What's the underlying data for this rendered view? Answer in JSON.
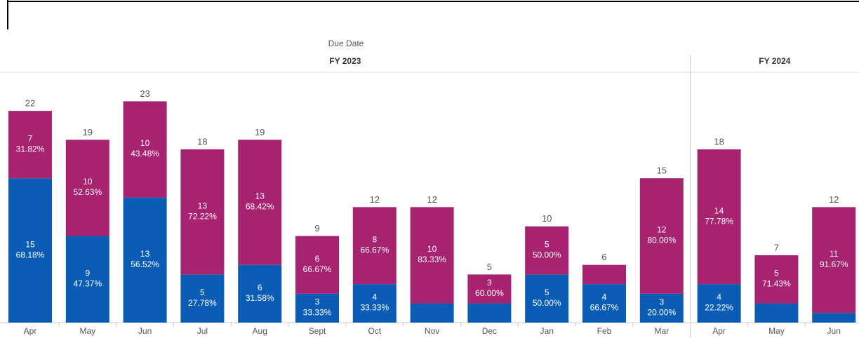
{
  "chart_data": {
    "type": "stacked_bar",
    "header": "Due Date",
    "groups": [
      {
        "name": "FY 2023",
        "categories": [
          "Apr",
          "May",
          "Jun",
          "Jul",
          "Aug",
          "Sept",
          "Oct",
          "Nov",
          "Dec",
          "Jan",
          "Feb",
          "Mar"
        ]
      },
      {
        "name": "FY 2024",
        "categories": [
          "Apr",
          "May",
          "Jun"
        ]
      }
    ],
    "series": [
      {
        "color": "#0b5cb5",
        "values": [
          15,
          9,
          13,
          5,
          6,
          3,
          4,
          2,
          2,
          5,
          4,
          3,
          4,
          2,
          1
        ],
        "share_labels": [
          "68.18%",
          "47.37%",
          "56.52%",
          "27.78%",
          "31.58%",
          "33.33%",
          "33.33%",
          null,
          null,
          "50.00%",
          "66.67%",
          "20.00%",
          "22.22%",
          null,
          null
        ]
      },
      {
        "color": "#a8236f",
        "values": [
          7,
          10,
          10,
          13,
          13,
          6,
          8,
          10,
          3,
          5,
          2,
          12,
          14,
          5,
          11
        ],
        "share_labels": [
          "31.82%",
          "52.63%",
          "43.48%",
          "72.22%",
          "68.42%",
          "66.67%",
          "66.67%",
          "83.33%",
          "60.00%",
          "50.00%",
          null,
          "80.00%",
          "77.78%",
          "71.43%",
          "91.67%"
        ]
      }
    ],
    "totals": [
      22,
      19,
      23,
      18,
      19,
      9,
      12,
      12,
      5,
      10,
      6,
      15,
      18,
      7,
      12
    ],
    "ylim": [
      0,
      25
    ]
  }
}
